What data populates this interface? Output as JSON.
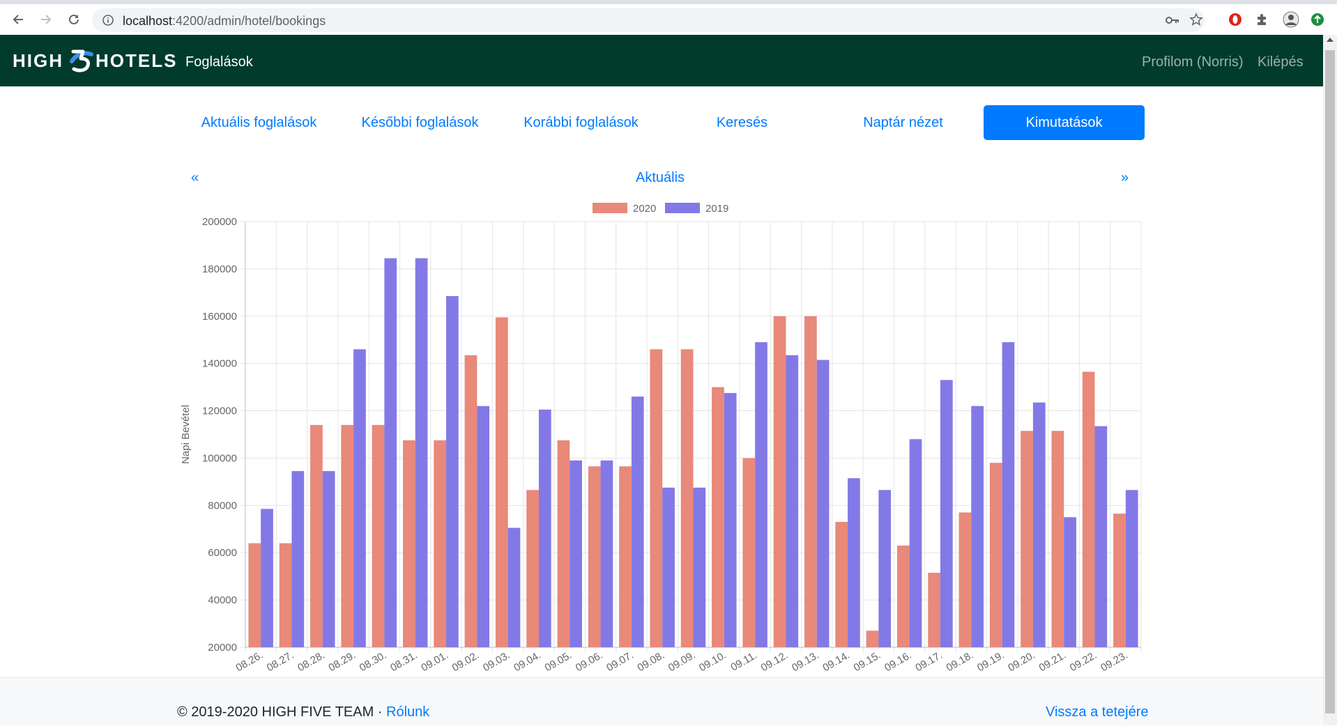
{
  "browser": {
    "url_host": "localhost",
    "url_path": ":4200/admin/hotel/bookings"
  },
  "navbar": {
    "brand": "HIGH HOTELS",
    "brand_left": "HIGH",
    "brand_right": "HOTELS",
    "title": "Foglalások",
    "profile": "Profilom (Norris)",
    "logout": "Kilépés",
    "background": "#003b2c"
  },
  "tabs": [
    {
      "label": "Aktuális foglalások",
      "active": false
    },
    {
      "label": "Későbbi foglalások",
      "active": false
    },
    {
      "label": "Korábbi foglalások",
      "active": false
    },
    {
      "label": "Keresés",
      "active": false
    },
    {
      "label": "Naptár nézet",
      "active": false
    },
    {
      "label": "Kimutatások",
      "active": true
    }
  ],
  "period": {
    "prev": "«",
    "current": "Aktuális",
    "next": "»"
  },
  "chart_data": {
    "type": "bar",
    "ylabel": "Napi Bevétel",
    "xlabel": "",
    "ylim": [
      20000,
      200000
    ],
    "yticks": [
      20000,
      40000,
      60000,
      80000,
      100000,
      120000,
      140000,
      160000,
      180000,
      200000
    ],
    "grid": true,
    "legend_position": "top",
    "categories": [
      "08.26.",
      "08.27.",
      "08.28.",
      "08.29.",
      "08.30.",
      "08.31.",
      "09.01.",
      "09.02.",
      "09.03.",
      "09.04.",
      "09.05.",
      "09.06.",
      "09.07.",
      "09.08.",
      "09.09.",
      "09.10.",
      "09.11.",
      "09.12.",
      "09.13.",
      "09.14.",
      "09.15.",
      "09.16.",
      "09.17.",
      "09.18.",
      "09.19.",
      "09.20.",
      "09.21.",
      "09.22.",
      "09.23."
    ],
    "series": [
      {
        "name": "2020",
        "color": "#e8897a",
        "values": [
          64000,
          64000,
          114000,
          114000,
          114000,
          107500,
          107500,
          143500,
          159500,
          86500,
          107500,
          96500,
          96500,
          146000,
          146000,
          130000,
          100000,
          160000,
          160000,
          73000,
          27000,
          63000,
          51500,
          77000,
          98000,
          111500,
          111500,
          136500,
          76500
        ]
      },
      {
        "name": "2019",
        "color": "#8379e6",
        "values": [
          78500,
          94500,
          94500,
          146000,
          184500,
          184500,
          168500,
          122000,
          70500,
          120500,
          99000,
          99000,
          126000,
          87500,
          87500,
          127500,
          149000,
          143500,
          141500,
          91500,
          86500,
          108000,
          133000,
          122000,
          149000,
          123500,
          75000,
          113500,
          86500
        ]
      }
    ]
  },
  "footer": {
    "copyright": "© 2019-2020 HIGH FIVE TEAM ·",
    "about": "Rólunk",
    "back_to_top": "Vissza a tetejére"
  }
}
